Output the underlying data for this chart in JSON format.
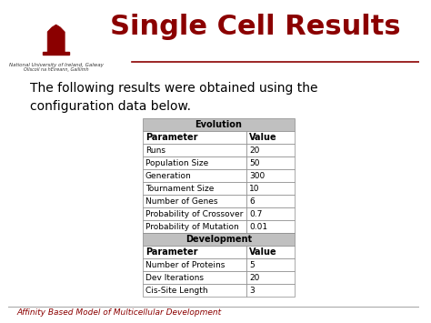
{
  "title": "Single Cell Results",
  "title_color": "#8B0000",
  "body_text": "The following results were obtained using the\nconfiguration data below.",
  "university_name": "National University of Ireland, Galway",
  "university_subtitle": "Ollscoil na hÉireann, Gaillimh",
  "footer_text": "Affinity Based Model of Multicellular Development",
  "footer_color": "#8B0000",
  "table_section1_header": "Evolution",
  "table_section2_header": "Development",
  "col_headers": [
    "Parameter",
    "Value"
  ],
  "evolution_rows": [
    [
      "Runs",
      "20"
    ],
    [
      "Population Size",
      "50"
    ],
    [
      "Generation",
      "300"
    ],
    [
      "Tournament Size",
      "10"
    ],
    [
      "Number of Genes",
      "6"
    ],
    [
      "Probability of Crossover",
      "0.7"
    ],
    [
      "Probability of Mutation",
      "0.01"
    ]
  ],
  "development_rows": [
    [
      "Number of Proteins",
      "5"
    ],
    [
      "Dev Iterations",
      "20"
    ],
    [
      "Cis-Site Length",
      "3"
    ]
  ],
  "section_header_bg": "#C0C0C0",
  "col_header_bg": "#FFFFFF",
  "row_bg_odd": "#FFFFFF",
  "row_bg_even": "#FFFFFF",
  "slide_bg": "#FFFFFF",
  "separator_color": "#8B0000"
}
